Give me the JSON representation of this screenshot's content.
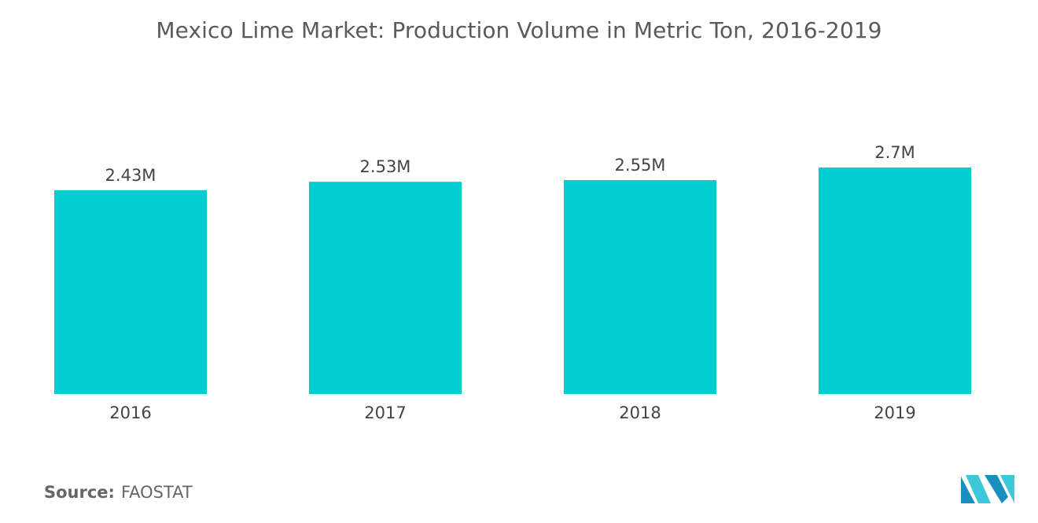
{
  "chart_data": {
    "type": "bar",
    "title": "Mexico Lime Market: Production Volume in Metric Ton, 2016-2019",
    "categories": [
      "2016",
      "2017",
      "2018",
      "2019"
    ],
    "values": [
      2.43,
      2.53,
      2.55,
      2.7
    ],
    "value_labels": [
      "2.43M",
      "2.53M",
      "2.55M",
      "2.7M"
    ],
    "unit": "M",
    "xlabel": "",
    "ylabel": "",
    "ylim": [
      0,
      2.7
    ],
    "grid": false,
    "legend": "none",
    "bar_color": "#00CED1"
  },
  "source": {
    "label": "Source:",
    "value": "FAOSTAT"
  },
  "logo": {
    "icon": "mordor-intelligence-logo-icon",
    "colors": [
      "#1a8fbf",
      "#3cc8d8"
    ]
  }
}
